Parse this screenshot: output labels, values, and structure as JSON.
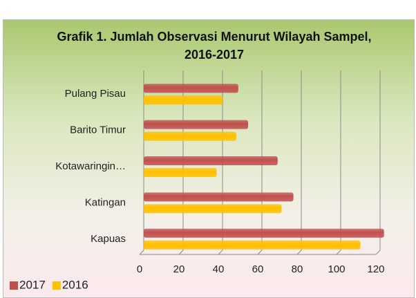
{
  "chart_data": {
    "type": "barh",
    "title": "Grafik 1.  Jumlah Observasi Menurut Wilayah Sampel, 2016-2017",
    "categories": [
      "Kapuas",
      "Katingan",
      "Kotawaringin…",
      "Barito Timur",
      "Pulang Pisau"
    ],
    "series": [
      {
        "name": "2017",
        "color": "#c0504d",
        "values": [
          122,
          76,
          68,
          53,
          48
        ]
      },
      {
        "name": "2016",
        "color": "#ffc000",
        "values": [
          110,
          70,
          37,
          47,
          40
        ]
      }
    ],
    "xlim": [
      0,
      120
    ],
    "xticks": [
      0,
      20,
      40,
      60,
      80,
      100,
      120
    ],
    "grid": true,
    "legend": "bottom-left"
  }
}
